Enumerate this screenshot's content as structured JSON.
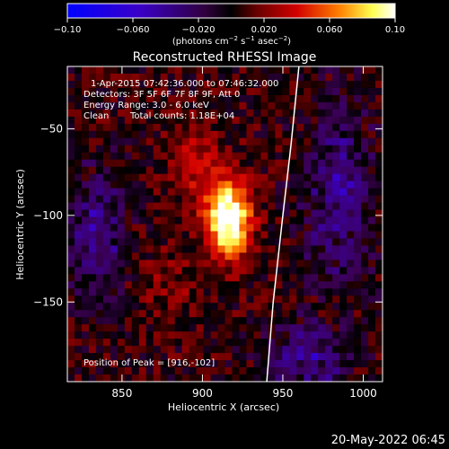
{
  "chart_data": {
    "type": "heatmap",
    "title": "Reconstructed RHESSI Image",
    "xlabel": "Heliocentric X (arcsec)",
    "ylabel": "Heliocentric Y (arcsec)",
    "xlim": [
      816,
      1012
    ],
    "ylim": [
      -196,
      -14
    ],
    "x_ticks": [
      850,
      900,
      950,
      1000
    ],
    "y_ticks": [
      -50,
      -100,
      -150
    ],
    "colorbar": {
      "label_prefix": "(photons cm",
      "label_sup1": "−2",
      "label_mid1": " s",
      "label_sup2": "−1",
      "label_mid2": " asec",
      "label_sup3": "−2",
      "label_suffix": ")",
      "range": [
        -0.1,
        0.1
      ],
      "ticks": [
        "−0.10",
        "−0.060",
        "−0.020",
        "0.020",
        "0.060",
        "0.10"
      ],
      "tick_values": [
        -0.1,
        -0.06,
        -0.02,
        0.02,
        0.06,
        0.1
      ],
      "colormap": [
        "#0000ff",
        "#3a00c8",
        "#3a0050",
        "#000000",
        "#6a0000",
        "#d20000",
        "#ff8000",
        "#ffff60",
        "#ffffff"
      ]
    },
    "source_peak": {
      "x": 916,
      "y": -102,
      "value": 0.1
    },
    "limb_curve": [
      [
        960,
        -14
      ],
      [
        955,
        -60
      ],
      [
        950,
        -100
      ],
      [
        944,
        -150
      ],
      [
        940,
        -196
      ]
    ],
    "annotations": {
      "time_range": "1-Apr-2015 07:42:36.000 to 07:46:32.000",
      "detectors": "Detectors: 3F 5F 6F 7F 8F 9F, Att 0",
      "energy": "Energy Range: 3.0 - 6.0 keV",
      "clean": "Clean",
      "counts": "Total counts: 1.18E+04",
      "peak": "Position of Peak = [916,-102]"
    }
  },
  "footer": {
    "date": "20-May-2022 06:45"
  }
}
